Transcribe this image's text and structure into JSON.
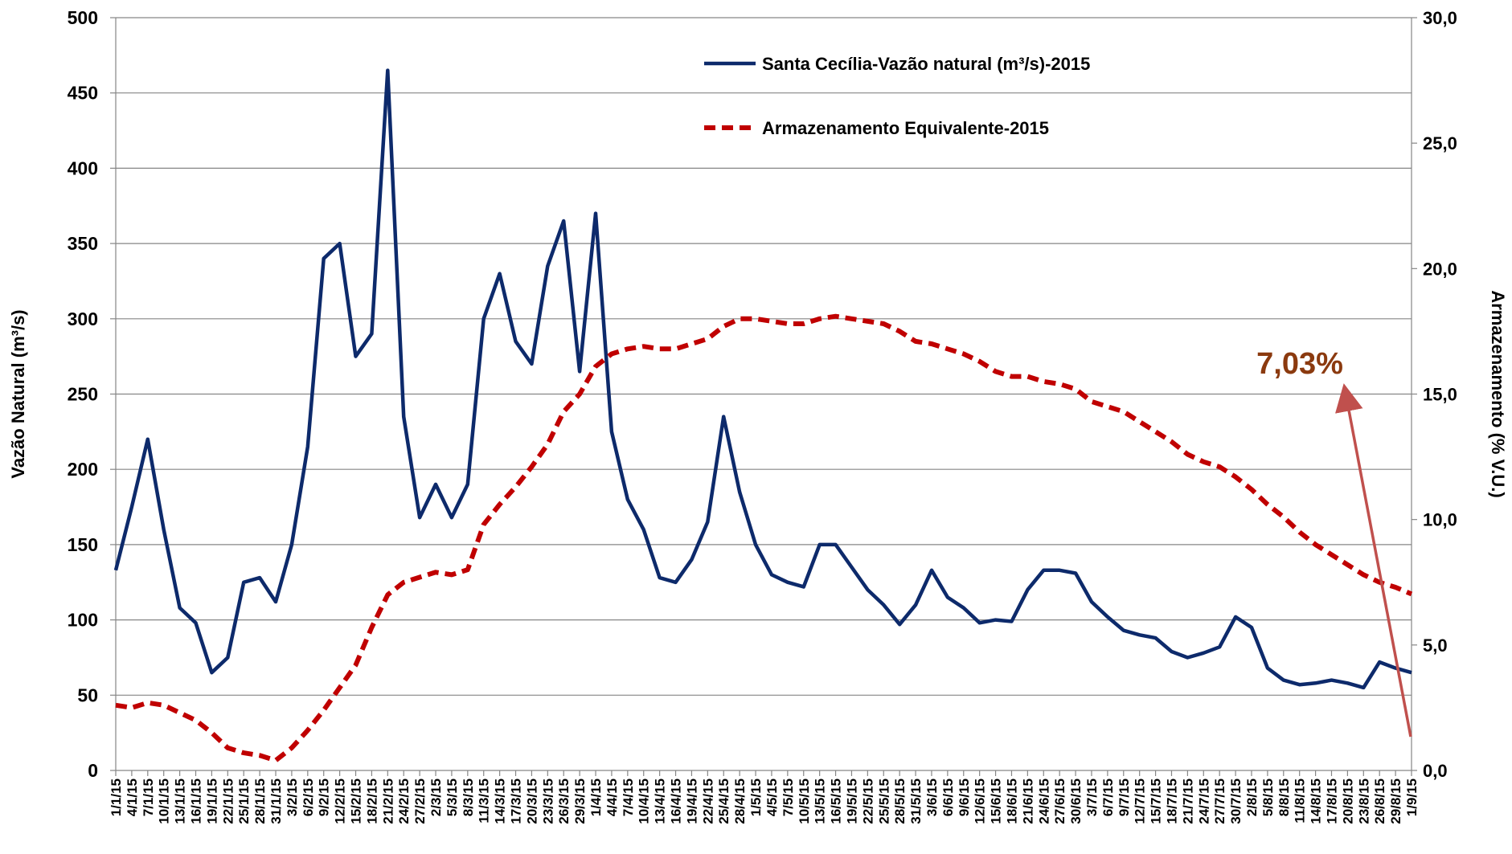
{
  "chart_data": {
    "type": "line",
    "ylabel": "Vazão Natural  (m³/s)",
    "y2label": "Armazenamento (% V.U.)",
    "categories": [
      "1/1/15",
      "4/1/15",
      "7/1/15",
      "10/1/15",
      "13/1/15",
      "16/1/15",
      "19/1/15",
      "22/1/15",
      "25/1/15",
      "28/1/15",
      "31/1/15",
      "3/2/15",
      "6/2/15",
      "9/2/15",
      "12/2/15",
      "15/2/15",
      "18/2/15",
      "21/2/15",
      "24/2/15",
      "27/2/15",
      "2/3/15",
      "5/3/15",
      "8/3/15",
      "11/3/15",
      "14/3/15",
      "17/3/15",
      "20/3/15",
      "23/3/15",
      "26/3/15",
      "29/3/15",
      "1/4/15",
      "4/4/15",
      "7/4/15",
      "10/4/15",
      "13/4/15",
      "16/4/15",
      "19/4/15",
      "22/4/15",
      "25/4/15",
      "28/4/15",
      "1/5/15",
      "4/5/15",
      "7/5/15",
      "10/5/15",
      "13/5/15",
      "16/5/15",
      "19/5/15",
      "22/5/15",
      "25/5/15",
      "28/5/15",
      "31/5/15",
      "3/6/15",
      "6/6/15",
      "9/6/15",
      "12/6/15",
      "15/6/15",
      "18/6/15",
      "21/6/15",
      "24/6/15",
      "27/6/15",
      "30/6/15",
      "3/7/15",
      "6/7/15",
      "9/7/15",
      "12/7/15",
      "15/7/15",
      "18/7/15",
      "21/7/15",
      "24/7/15",
      "27/7/15",
      "30/7/15",
      "2/8/15",
      "5/8/15",
      "8/8/15",
      "11/8/15",
      "14/8/15",
      "17/8/15",
      "20/8/15",
      "23/8/15",
      "26/8/15",
      "29/8/15",
      "1/9/15"
    ],
    "series": [
      {
        "name": "Santa Cecília-Vazão natural (m³/s)-2015",
        "color": "#0d2a6b",
        "axis": "y",
        "dashed": false,
        "values": [
          133,
          175,
          220,
          160,
          108,
          98,
          65,
          75,
          125,
          128,
          112,
          150,
          215,
          340,
          350,
          275,
          290,
          465,
          235,
          168,
          190,
          168,
          190,
          300,
          330,
          285,
          270,
          335,
          365,
          265,
          370,
          225,
          180,
          160,
          128,
          125,
          140,
          165,
          235,
          185,
          150,
          130,
          125,
          122,
          150,
          150,
          135,
          120,
          110,
          97,
          110,
          133,
          115,
          108,
          98,
          100,
          99,
          120,
          133,
          133,
          131,
          112,
          102,
          93,
          90,
          88,
          79,
          75,
          78,
          82,
          102,
          95,
          68,
          60,
          57,
          58,
          60,
          58,
          55,
          72,
          68,
          65
        ]
      },
      {
        "name": "Armazenamento Equivalente-2015",
        "color": "#c00000",
        "axis": "y2",
        "dashed": true,
        "values": [
          2.6,
          2.5,
          2.7,
          2.6,
          2.3,
          2.0,
          1.5,
          0.9,
          0.7,
          0.6,
          0.4,
          0.9,
          1.6,
          2.4,
          3.3,
          4.2,
          5.7,
          7.0,
          7.5,
          7.7,
          7.9,
          7.8,
          8.0,
          9.8,
          10.6,
          11.3,
          12.1,
          13.0,
          14.3,
          15.0,
          16.1,
          16.6,
          16.8,
          16.9,
          16.8,
          16.8,
          17.0,
          17.2,
          17.7,
          18.0,
          18.0,
          17.9,
          17.8,
          17.8,
          18.0,
          18.1,
          18.0,
          17.9,
          17.8,
          17.5,
          17.1,
          17.0,
          16.8,
          16.6,
          16.3,
          15.9,
          15.7,
          15.7,
          15.5,
          15.4,
          15.2,
          14.7,
          14.5,
          14.3,
          13.9,
          13.5,
          13.1,
          12.6,
          12.3,
          12.1,
          11.7,
          11.2,
          10.6,
          10.1,
          9.5,
          9.0,
          8.6,
          8.2,
          7.8,
          7.5,
          7.3,
          7.03
        ]
      }
    ],
    "ylim": [
      0,
      500
    ],
    "yticks": [
      0,
      50,
      100,
      150,
      200,
      250,
      300,
      350,
      400,
      450,
      500
    ],
    "y2lim": [
      0,
      30
    ],
    "y2ticks": [
      {
        "value": 0,
        "label": "0,0"
      },
      {
        "value": 5,
        "label": "5,0"
      },
      {
        "value": 10,
        "label": "10,0"
      },
      {
        "value": 15,
        "label": "15,0"
      },
      {
        "value": 20,
        "label": "20,0"
      },
      {
        "value": 25,
        "label": "25,0"
      },
      {
        "value": 30,
        "label": "30,0"
      }
    ],
    "grid": true,
    "legend": "top",
    "annotations": [
      {
        "text": "7,03%",
        "color": "#8b3a0f"
      }
    ]
  }
}
